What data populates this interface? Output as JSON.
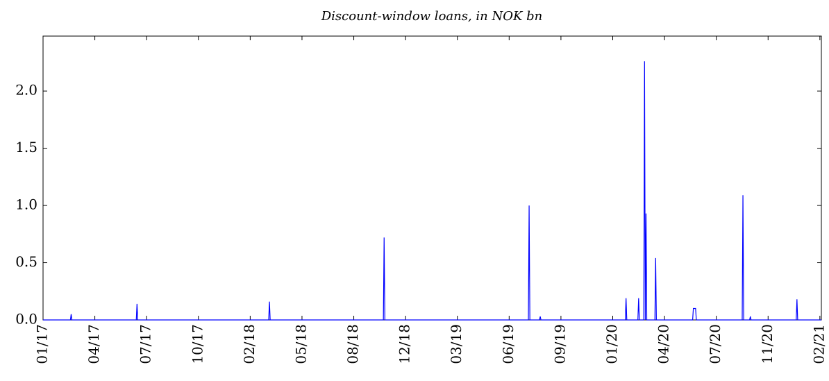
{
  "chart_data": {
    "type": "line",
    "title": "Discount-window loans, in NOK bn",
    "x": [
      0,
      37,
      38,
      39,
      126,
      127,
      128,
      305,
      306,
      307,
      460,
      461,
      462,
      656,
      657,
      658,
      671,
      672,
      673,
      787,
      788,
      789,
      804,
      805,
      806,
      812,
      813,
      814,
      815,
      816,
      827,
      828,
      829,
      878,
      879,
      882,
      883,
      945,
      946,
      947,
      955,
      956,
      957,
      1018,
      1019,
      1020,
      1052
    ],
    "series": [
      {
        "name": "Discount-window loans",
        "color": "#0000ff",
        "values": [
          0,
          0,
          0.05,
          0,
          0,
          0.14,
          0,
          0,
          0.16,
          0,
          0,
          0.72,
          0,
          0,
          1.0,
          0,
          0,
          0.03,
          0,
          0,
          0.19,
          0,
          0,
          0.19,
          0,
          0,
          2.26,
          0,
          0.93,
          0,
          0,
          0.54,
          0,
          0,
          0.1,
          0.1,
          0,
          0,
          1.09,
          0,
          0,
          0.03,
          0,
          0,
          0.18,
          0,
          0
        ]
      }
    ],
    "xlim": [
      0,
      1052
    ],
    "xticks": [
      {
        "value": 0,
        "label": "01/17"
      },
      {
        "value": 70,
        "label": "04/17"
      },
      {
        "value": 140,
        "label": "07/17"
      },
      {
        "value": 210,
        "label": "10/17"
      },
      {
        "value": 280,
        "label": "02/18"
      },
      {
        "value": 350,
        "label": "05/18"
      },
      {
        "value": 420,
        "label": "08/18"
      },
      {
        "value": 490,
        "label": "12/18"
      },
      {
        "value": 560,
        "label": "03/19"
      },
      {
        "value": 630,
        "label": "06/19"
      },
      {
        "value": 700,
        "label": "09/19"
      },
      {
        "value": 770,
        "label": "01/20"
      },
      {
        "value": 840,
        "label": "04/20"
      },
      {
        "value": 910,
        "label": "07/20"
      },
      {
        "value": 980,
        "label": "11/20"
      },
      {
        "value": 1050,
        "label": "02/21"
      }
    ],
    "ylim": [
      0,
      2.48
    ],
    "yticks": [
      {
        "value": 0,
        "label": "0.0"
      },
      {
        "value": 0.5,
        "label": "0.5"
      },
      {
        "value": 1,
        "label": "1.0"
      },
      {
        "value": 1.5,
        "label": "1.5"
      },
      {
        "value": 2,
        "label": "2.0"
      }
    ]
  }
}
